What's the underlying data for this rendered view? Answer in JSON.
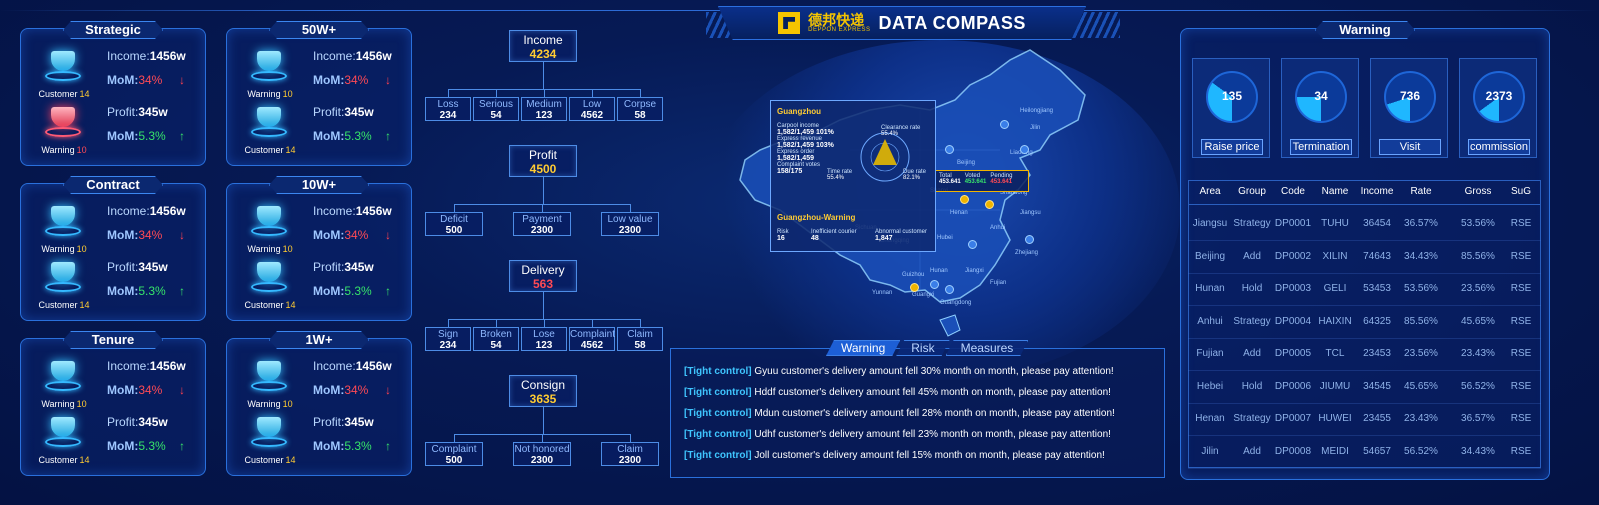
{
  "header": {
    "logo_cn": "德邦快递",
    "logo_en": "DEPPON EXPRESS",
    "title": "DATA COMPASS"
  },
  "left_cards": [
    {
      "title": "Strategic",
      "rows": [
        {
          "badge_label": "Customer",
          "badge_num": "14",
          "badge_color": "blue",
          "metric_label": "Income:",
          "metric_value": "1456",
          "metric_unit": "w",
          "mom_label": "MoM:",
          "mom_value": "34%",
          "trend": "down"
        },
        {
          "badge_label": "Warning",
          "badge_num": "10",
          "badge_color": "red",
          "metric_label": "Profit:",
          "metric_value": "345",
          "metric_unit": "w",
          "mom_label": "MoM:",
          "mom_value": "5.3%",
          "trend": "up"
        }
      ]
    },
    {
      "title": "50W+",
      "rows": [
        {
          "badge_label": "Warning",
          "badge_num": "10",
          "badge_color": "blue",
          "metric_label": "Income:",
          "metric_value": "1456",
          "metric_unit": "w",
          "mom_label": "MoM:",
          "mom_value": "34%",
          "trend": "down"
        },
        {
          "badge_label": "Customer",
          "badge_num": "14",
          "badge_color": "blue",
          "metric_label": "Profit:",
          "metric_value": "345",
          "metric_unit": "w",
          "mom_label": "MoM:",
          "mom_value": "5.3%",
          "trend": "up"
        }
      ]
    },
    {
      "title": "Contract",
      "rows": [
        {
          "badge_label": "Warning",
          "badge_num": "10",
          "badge_color": "blue",
          "metric_label": "Income:",
          "metric_value": "1456",
          "metric_unit": "w",
          "mom_label": "MoM:",
          "mom_value": "34%",
          "trend": "down"
        },
        {
          "badge_label": "Customer",
          "badge_num": "14",
          "badge_color": "blue",
          "metric_label": "Profit:",
          "metric_value": "345",
          "metric_unit": "w",
          "mom_label": "MoM:",
          "mom_value": "5.3%",
          "trend": "up"
        }
      ]
    },
    {
      "title": "10W+",
      "rows": [
        {
          "badge_label": "Warning",
          "badge_num": "10",
          "badge_color": "blue",
          "metric_label": "Income:",
          "metric_value": "1456",
          "metric_unit": "w",
          "mom_label": "MoM:",
          "mom_value": "34%",
          "trend": "down"
        },
        {
          "badge_label": "Customer",
          "badge_num": "14",
          "badge_color": "blue",
          "metric_label": "Profit:",
          "metric_value": "345",
          "metric_unit": "w",
          "mom_label": "MoM:",
          "mom_value": "5.3%",
          "trend": "up"
        }
      ]
    },
    {
      "title": "Tenure",
      "rows": [
        {
          "badge_label": "Warning",
          "badge_num": "10",
          "badge_color": "blue",
          "metric_label": "Income:",
          "metric_value": "1456",
          "metric_unit": "w",
          "mom_label": "MoM:",
          "mom_value": "34%",
          "trend": "down"
        },
        {
          "badge_label": "Customer",
          "badge_num": "14",
          "badge_color": "blue",
          "metric_label": "Profit:",
          "metric_value": "345",
          "metric_unit": "w",
          "mom_label": "MoM:",
          "mom_value": "5.3%",
          "trend": "up"
        }
      ]
    },
    {
      "title": "1W+",
      "rows": [
        {
          "badge_label": "Warning",
          "badge_num": "10",
          "badge_color": "blue",
          "metric_label": "Income:",
          "metric_value": "1456",
          "metric_unit": "w",
          "mom_label": "MoM:",
          "mom_value": "34%",
          "trend": "down"
        },
        {
          "badge_label": "Customer",
          "badge_num": "14",
          "badge_color": "blue",
          "metric_label": "Profit:",
          "metric_value": "345",
          "metric_unit": "w",
          "mom_label": "MoM:",
          "mom_value": "5.3%",
          "trend": "up"
        }
      ]
    }
  ],
  "tree": {
    "income": {
      "label": "Income",
      "value": "4234",
      "color": "#ffcc33",
      "children": [
        {
          "label": "Loss",
          "value": "234"
        },
        {
          "label": "Serious",
          "value": "54"
        },
        {
          "label": "Medium",
          "value": "123"
        },
        {
          "label": "Low",
          "value": "4562"
        },
        {
          "label": "Corpse",
          "value": "58"
        }
      ]
    },
    "profit": {
      "label": "Profit",
      "value": "4500",
      "color": "#ffcc33",
      "children": [
        {
          "label": "Deficit",
          "value": "500"
        },
        {
          "label": "Payment",
          "value": "2300"
        },
        {
          "label": "Low value",
          "value": "2300"
        }
      ]
    },
    "delivery": {
      "label": "Delivery",
      "value": "563",
      "color": "#ff4a55",
      "children": [
        {
          "label": "Sign",
          "value": "234"
        },
        {
          "label": "Broken",
          "value": "54"
        },
        {
          "label": "Lose",
          "value": "123"
        },
        {
          "label": "Complaint",
          "value": "4562"
        },
        {
          "label": "Claim",
          "value": "58"
        }
      ]
    },
    "consign": {
      "label": "Consign",
      "value": "3635",
      "color": "#ffcc33",
      "children": [
        {
          "label": "Complaint",
          "value": "500"
        },
        {
          "label": "Not honored",
          "value": "2300"
        },
        {
          "label": "Claim",
          "value": "2300"
        }
      ]
    }
  },
  "map": {
    "popup": {
      "city": "Guangzhou",
      "carpool_label": "Carpool income",
      "carpool_value": "1,582/1,459",
      "carpool_pct": "101%",
      "express_rev_label": "Express revenue",
      "express_rev_value": "1,582/1,459",
      "express_rev_pct": "103%",
      "express_order_label": "Express order",
      "express_order_value": "1,582/1,459",
      "complaint_label": "Complaint votes",
      "complaint_value": "158/175",
      "clearance_label": "Clearance rate",
      "clearance_value": "55.4%",
      "time_rate_label": "Time rate",
      "time_rate_value": "55.4%",
      "due_rate_label": "Due rate",
      "due_rate_value": "82.1%",
      "warning_title": "Guangzhou-Warning",
      "risk_label": "Risk",
      "risk_value": "16",
      "inefficient_label": "Inefficient courier",
      "inefficient_value": "48",
      "abnormal_label": "Abnormal customer",
      "abnormal_value": "1,847"
    },
    "side_box": {
      "total_label": "Total",
      "total_value": "453.641",
      "voted_label": "Voted",
      "voted_value": "453.641",
      "pending_label": "Pending",
      "pending_value": "453.641"
    },
    "cities": [
      "Heilongjiang",
      "Jilin",
      "Liaoning",
      "Beijing",
      "Hebei",
      "Shanxi",
      "Shandong",
      "Henan",
      "Jiangsu",
      "Anhui",
      "Hubei",
      "Zhejiang",
      "Hunan",
      "Jiangxi",
      "Fujian",
      "Guizhou",
      "Guangxi",
      "Yunnan",
      "Guangdong",
      "Chongqing",
      "Sichuan"
    ]
  },
  "warning_tabs": [
    {
      "label": "Warning",
      "active": true
    },
    {
      "label": "Risk",
      "active": false
    },
    {
      "label": "Measures",
      "active": false
    }
  ],
  "messages": [
    {
      "tag": "[Tight control]",
      "text": "Gyuu customer's delivery amount fell 30% month on month, please pay attention!"
    },
    {
      "tag": "[Tight control]",
      "text": "Hddf customer's delivery amount fell 45% month on month, please pay attention!"
    },
    {
      "tag": "[Tight control]",
      "text": "Mdun customer's delivery amount fell 28% month on month, please pay attention!"
    },
    {
      "tag": "[Tight control]",
      "text": "Udhf customer's delivery amount fell 23% month on month, please pay attention!"
    },
    {
      "tag": "[Tight control]",
      "text": "Joll customer's delivery amount fell 15% month on month, please pay attention!"
    }
  ],
  "right_panel": {
    "title": "Warning",
    "gauges": [
      {
        "value": "135",
        "button": "Raise price",
        "fill": 0.35
      },
      {
        "value": "34",
        "button": "Termination",
        "fill": 0.25
      },
      {
        "value": "736",
        "button": "Visit",
        "fill": 0.2
      },
      {
        "value": "2373",
        "button": "commission",
        "fill": 0.15
      }
    ],
    "table": {
      "columns": [
        "Area",
        "Group",
        "Code",
        "Name",
        "Income",
        "Rate",
        "Gross",
        "SuG"
      ],
      "rows": [
        [
          "Jiangsu",
          "Strategy",
          "DP0001",
          "TUHU",
          "36454",
          "36.57%",
          "53.56%",
          "RSE"
        ],
        [
          "Beijing",
          "Add",
          "DP0002",
          "XILIN",
          "74643",
          "34.43%",
          "85.56%",
          "RSE"
        ],
        [
          "Hunan",
          "Hold",
          "DP0003",
          "GELI",
          "53453",
          "53.56%",
          "23.56%",
          "RSE"
        ],
        [
          "Anhui",
          "Strategy",
          "DP0004",
          "HAIXIN",
          "64325",
          "85.56%",
          "45.65%",
          "RSE"
        ],
        [
          "Fujian",
          "Add",
          "DP0005",
          "TCL",
          "23453",
          "23.56%",
          "23.43%",
          "RSE"
        ],
        [
          "Hebei",
          "Hold",
          "DP0006",
          "JIUMU",
          "34545",
          "45.65%",
          "56.52%",
          "RSE"
        ],
        [
          "Henan",
          "Strategy",
          "DP0007",
          "HUWEI",
          "23455",
          "23.43%",
          "36.57%",
          "RSE"
        ],
        [
          "Jilin",
          "Add",
          "DP0008",
          "MEIDI",
          "54657",
          "56.52%",
          "34.43%",
          "RSE"
        ]
      ]
    }
  },
  "colors": {
    "background": "#04123f",
    "accent": "#2a70dc",
    "gold": "#ffcc33",
    "red": "#ff4a55",
    "green": "#36e36a",
    "cyan": "#3fc6ff"
  }
}
